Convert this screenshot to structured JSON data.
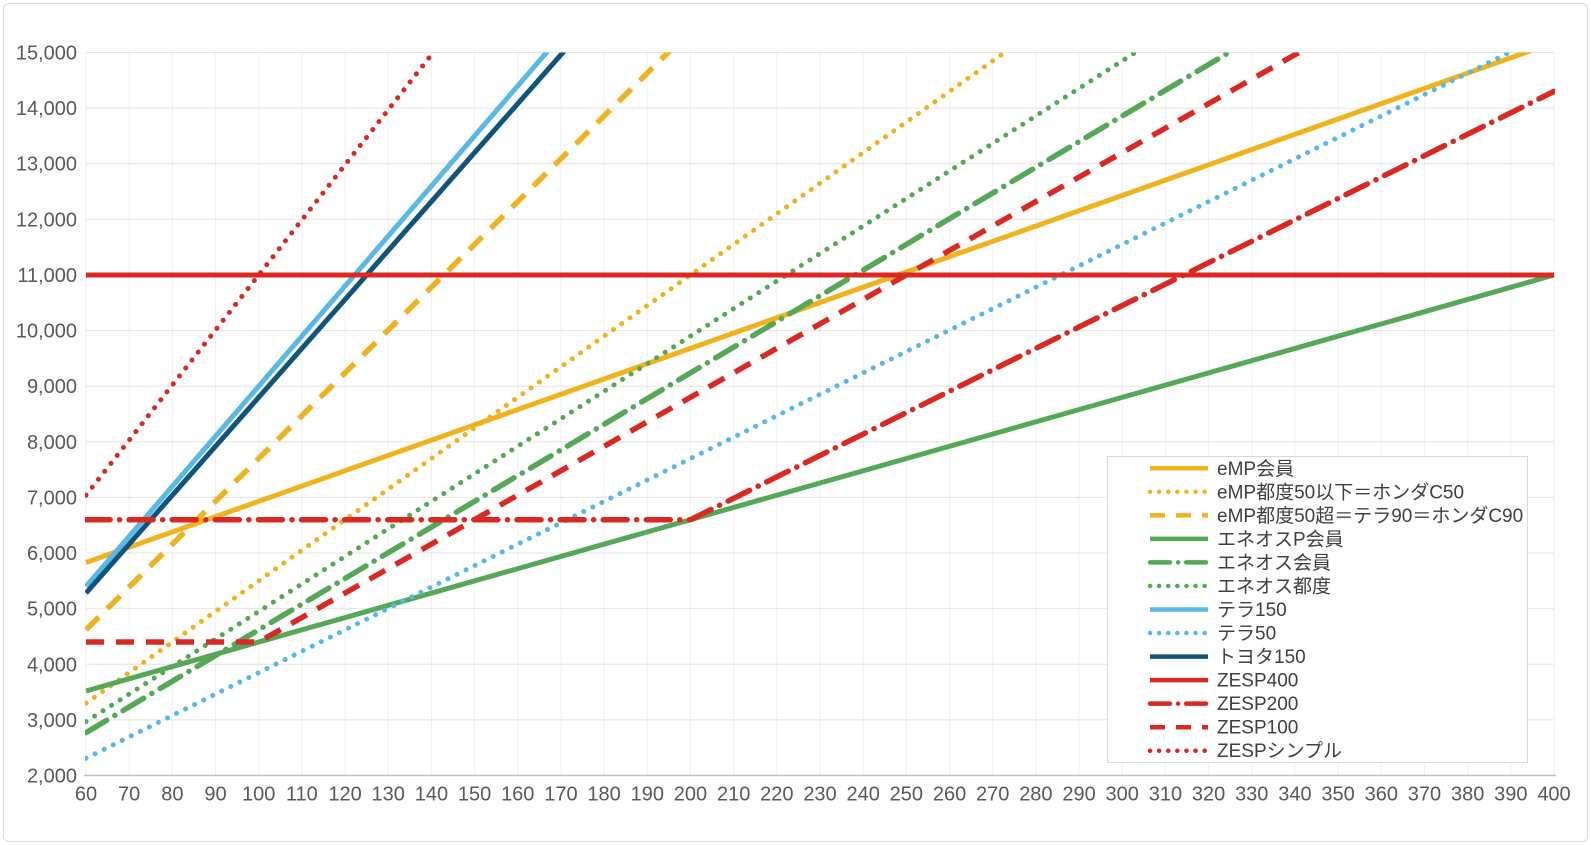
{
  "chart_data": {
    "type": "line",
    "title": "",
    "xlabel": "",
    "ylabel": "",
    "x_axis": {
      "min": 60,
      "max": 400,
      "step": 10,
      "tick_labels": [
        "60",
        "70",
        "80",
        "90",
        "100",
        "110",
        "120",
        "130",
        "140",
        "150",
        "160",
        "170",
        "180",
        "190",
        "200",
        "210",
        "220",
        "230",
        "240",
        "250",
        "260",
        "270",
        "280",
        "290",
        "300",
        "310",
        "320",
        "330",
        "340",
        "350",
        "360",
        "370",
        "380",
        "390",
        "400"
      ]
    },
    "y_axis": {
      "min": 2000,
      "max": 15000,
      "step": 1000,
      "tick_labels": [
        "2,000",
        "3,000",
        "4,000",
        "5,000",
        "6,000",
        "7,000",
        "8,000",
        "9,000",
        "10,000",
        "11,000",
        "12,000",
        "13,000",
        "14,000",
        "15,000"
      ]
    },
    "grid": true,
    "legend_position": "inside-right",
    "series": [
      {
        "name": "eMP会員",
        "color": "#F0B31E",
        "style": "solid",
        "points": [
          [
            60,
            5830
          ],
          [
            400,
            15180
          ]
        ]
      },
      {
        "name": "eMP都度50以下＝ホンダC50",
        "color": "#F0B31E",
        "style": "dotted",
        "points": [
          [
            60,
            3300
          ],
          [
            400,
            22000
          ]
        ]
      },
      {
        "name": "eMP都度50超＝テラ90＝ホンダC90",
        "color": "#F0B31E",
        "style": "dashed",
        "points": [
          [
            60,
            4620
          ],
          [
            400,
            30800
          ]
        ]
      },
      {
        "name": "エネオスP会員",
        "color": "#55A857",
        "style": "solid",
        "points": [
          [
            60,
            3520
          ],
          [
            400,
            11000
          ]
        ]
      },
      {
        "name": "エネオス会員",
        "color": "#55A857",
        "style": "dashdot",
        "points": [
          [
            60,
            2772
          ],
          [
            400,
            18480
          ]
        ]
      },
      {
        "name": "エネオス都度",
        "color": "#55A857",
        "style": "dotted",
        "points": [
          [
            60,
            2970
          ],
          [
            400,
            19800
          ]
        ]
      },
      {
        "name": "テラ150",
        "color": "#58B9E6",
        "style": "solid",
        "points": [
          [
            60,
            5400
          ],
          [
            400,
            36000
          ]
        ]
      },
      {
        "name": "テラ50",
        "color": "#58B9E6",
        "style": "dotted",
        "points": [
          [
            60,
            2310
          ],
          [
            400,
            15400
          ]
        ]
      },
      {
        "name": "トヨタ150",
        "color": "#10547C",
        "style": "solid",
        "points": [
          [
            60,
            5280
          ],
          [
            400,
            35200
          ]
        ]
      },
      {
        "name": "ZESP400",
        "color": "#DB2823",
        "style": "solid",
        "points": [
          [
            60,
            11000
          ],
          [
            400,
            11000
          ]
        ]
      },
      {
        "name": "ZESP200",
        "color": "#DB2823",
        "style": "dashdot",
        "points": [
          [
            60,
            6600
          ],
          [
            200,
            6600
          ],
          [
            400,
            14300
          ]
        ]
      },
      {
        "name": "ZESP100",
        "color": "#DB2823",
        "style": "dashed",
        "points": [
          [
            60,
            4400
          ],
          [
            100,
            4400
          ],
          [
            400,
            17600
          ]
        ]
      },
      {
        "name": "ZESPシンプル",
        "color": "#DB2823",
        "style": "dotted",
        "points": [
          [
            60,
            7040
          ],
          [
            400,
            40700
          ]
        ]
      }
    ],
    "colors": {
      "grid_h": "#e4e4e4",
      "grid_v": "#f0f0f0",
      "axis_line": "#bfbfbf",
      "tick_label": "#595959",
      "legend_text": "#404040",
      "legend_border": "#d9d9d9",
      "background": "#ffffff"
    }
  }
}
